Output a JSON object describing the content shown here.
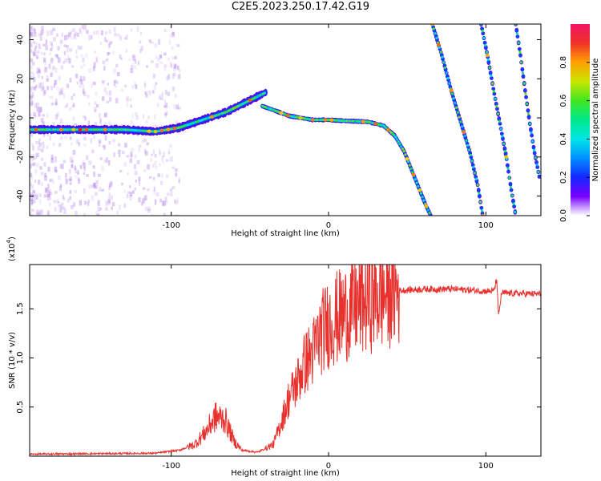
{
  "title": "C2E5.2023.250.17.42.G19",
  "chart_data": [
    {
      "type": "heatmap",
      "xlabel": "Height of straight line (km)",
      "ylabel": "Frequency (Hz)",
      "xlim": [
        -190,
        135
      ],
      "ylim": [
        -50,
        48
      ],
      "xticks": [
        -100,
        0,
        100
      ],
      "yticks": [
        -40,
        -20,
        0,
        20,
        40
      ],
      "colorbar": {
        "label": "Normalized spectral amplitude",
        "range": [
          0,
          1
        ],
        "ticks": [
          "0.0",
          "0.2",
          "0.4",
          "0.6",
          "0.8"
        ],
        "tick_values": [
          0,
          0.2,
          0.4,
          0.6,
          0.8
        ]
      },
      "traces": [
        {
          "name": "main",
          "points": [
            [
              -190,
              -6
            ],
            [
              -160,
              -6
            ],
            [
              -130,
              -6
            ],
            [
              -110,
              -7
            ],
            [
              -95,
              -5
            ],
            [
              -80,
              -1
            ],
            [
              -65,
              3
            ],
            [
              -55,
              7
            ],
            [
              -45,
              11
            ],
            [
              -40,
              13
            ]
          ]
        },
        {
          "name": "main2",
          "points": [
            [
              -42,
              6
            ],
            [
              -35,
              4
            ],
            [
              -25,
              1
            ],
            [
              -10,
              -1
            ],
            [
              0,
              -1
            ],
            [
              10,
              -1.5
            ],
            [
              25,
              -2
            ],
            [
              35,
              -4
            ],
            [
              42,
              -9
            ],
            [
              48,
              -17
            ],
            [
              53,
              -27
            ],
            [
              58,
              -37
            ],
            [
              62,
              -45
            ],
            [
              65,
              -50
            ]
          ]
        },
        {
          "name": "line1",
          "points": [
            [
              66,
              48
            ],
            [
              72,
              32
            ],
            [
              78,
              14
            ],
            [
              84,
              -2
            ],
            [
              90,
              -18
            ],
            [
              95,
              -35
            ],
            [
              98,
              -50
            ]
          ]
        },
        {
          "name": "line2",
          "points": [
            [
              97,
              48
            ],
            [
              101,
              32
            ],
            [
              105,
              14
            ],
            [
              109,
              -3
            ],
            [
              113,
              -20
            ],
            [
              116,
              -36
            ],
            [
              119,
              -50
            ]
          ]
        },
        {
          "name": "line3",
          "points": [
            [
              119,
              48
            ],
            [
              122,
              32
            ],
            [
              125,
              14
            ],
            [
              128,
              -3
            ],
            [
              131,
              -18
            ],
            [
              134,
              -30
            ]
          ]
        }
      ]
    },
    {
      "type": "line",
      "xlabel": "Height of straight line (km)",
      "ylabel": "SNR (10 * v/v)",
      "scale_label": "(x10",
      "scale_exp": "4",
      "scale_close": ")",
      "xlim": [
        -190,
        135
      ],
      "ylim": [
        0,
        1.95
      ],
      "xticks": [
        -100,
        0,
        100
      ],
      "yticks": [
        0.5,
        1.0,
        1.5
      ],
      "ytick_labels": [
        "0.5",
        "1.0",
        "1.5"
      ],
      "color": "#e8302c",
      "envelope": [
        [
          -190,
          0.02
        ],
        [
          -110,
          0.03
        ],
        [
          -95,
          0.06
        ],
        [
          -85,
          0.12
        ],
        [
          -78,
          0.25
        ],
        [
          -72,
          0.4
        ],
        [
          -66,
          0.38
        ],
        [
          -60,
          0.15
        ],
        [
          -55,
          0.06
        ],
        [
          -45,
          0.04
        ],
        [
          -35,
          0.12
        ],
        [
          -30,
          0.35
        ],
        [
          -25,
          0.6
        ],
        [
          -20,
          0.75
        ],
        [
          -15,
          0.95
        ],
        [
          -10,
          1.05
        ],
        [
          -5,
          1.25
        ],
        [
          0,
          1.35
        ],
        [
          10,
          1.45
        ],
        [
          20,
          1.55
        ],
        [
          30,
          1.62
        ],
        [
          40,
          1.68
        ],
        [
          60,
          1.7
        ],
        [
          80,
          1.7
        ],
        [
          100,
          1.68
        ],
        [
          105,
          1.68
        ],
        [
          107,
          1.8
        ],
        [
          108,
          1.42
        ],
        [
          110,
          1.66
        ],
        [
          135,
          1.65
        ]
      ]
    }
  ]
}
